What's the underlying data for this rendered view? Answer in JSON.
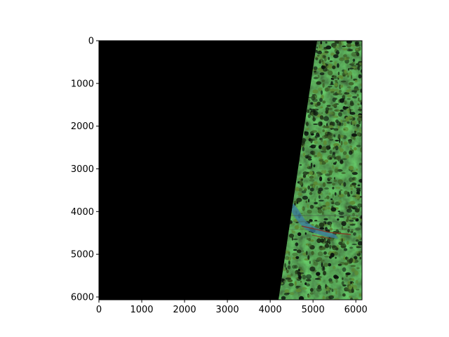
{
  "figure": {
    "background": "#ffffff",
    "image_extent": {
      "width": 6144,
      "height": 6066
    },
    "image_colors": {
      "nodata": "#000000",
      "vegetation_dark": "#1f3318",
      "vegetation_mid": "#3c5f27",
      "vegetation_light": "#5c8a34",
      "shadow": "#0c140e",
      "water": "#3b7ea1",
      "soil_red": "#8a2b1c"
    },
    "content_description": "satellite image strip; left portion is no-data (black), valid imagery on right edge"
  },
  "axes": {
    "x_ticks": [
      {
        "label": "0",
        "value": 0
      },
      {
        "label": "1000",
        "value": 1000
      },
      {
        "label": "2000",
        "value": 2000
      },
      {
        "label": "3000",
        "value": 3000
      },
      {
        "label": "4000",
        "value": 4000
      },
      {
        "label": "5000",
        "value": 5000
      },
      {
        "label": "6000",
        "value": 6000
      }
    ],
    "y_ticks": [
      {
        "label": "0",
        "value": 0
      },
      {
        "label": "1000",
        "value": 1000
      },
      {
        "label": "2000",
        "value": 2000
      },
      {
        "label": "3000",
        "value": 3000
      },
      {
        "label": "4000",
        "value": 4000
      },
      {
        "label": "5000",
        "value": 5000
      },
      {
        "label": "6000",
        "value": 6000
      }
    ]
  }
}
